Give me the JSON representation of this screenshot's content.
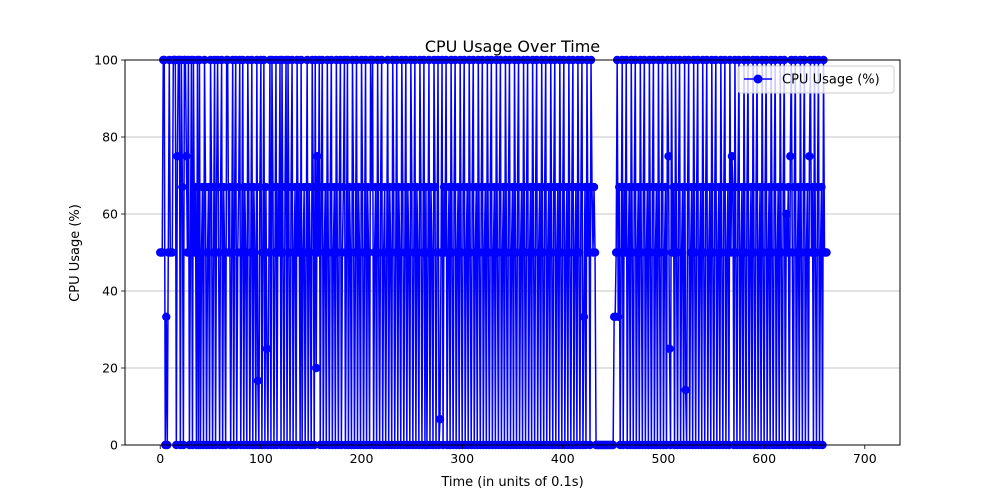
{
  "chart_data": {
    "type": "line",
    "title": "CPU Usage Over Time",
    "xlabel": "Time (in units of 0.1s)",
    "ylabel": "CPU Usage (%)",
    "xlim": [
      -35,
      735
    ],
    "ylim": [
      0,
      100
    ],
    "x_ticks": [
      0,
      100,
      200,
      300,
      400,
      500,
      600,
      700
    ],
    "y_ticks": [
      0,
      20,
      40,
      60,
      80,
      100
    ],
    "x_tick_labels": [
      "0",
      "100",
      "200",
      "300",
      "400",
      "500",
      "600",
      "700"
    ],
    "y_tick_labels": [
      "0",
      "20",
      "40",
      "60",
      "80",
      "100"
    ],
    "grid": "y-axis",
    "legend_position": "top-right",
    "series": [
      {
        "name": "CPU Usage (%)",
        "color": "#0000ff",
        "marker": "circle",
        "x_start": 0,
        "x_step": 1,
        "y": [
          50,
          50,
          50,
          100,
          100,
          0,
          33.3,
          0,
          50,
          100,
          50,
          50,
          50,
          100,
          100,
          100,
          0,
          75,
          100,
          100,
          0,
          100,
          67,
          0,
          100,
          100,
          75,
          50,
          100,
          0,
          50,
          100,
          0,
          100,
          50,
          67,
          0,
          100,
          0,
          100,
          0,
          50,
          67,
          0,
          100,
          67,
          0,
          50,
          67,
          0,
          100,
          67,
          0,
          50,
          100,
          0,
          67,
          100,
          50,
          0,
          67,
          100,
          0,
          67,
          50,
          0,
          100,
          100,
          50,
          67,
          0,
          50,
          100,
          0,
          67,
          100,
          0,
          50,
          67,
          100,
          0,
          50,
          100,
          0,
          67,
          50,
          0,
          100,
          67,
          0,
          50,
          100,
          0,
          67,
          50,
          0,
          100,
          16.7,
          0,
          67,
          100,
          0,
          50,
          100,
          0,
          67,
          25,
          0,
          50,
          100,
          0,
          100,
          67,
          0,
          50,
          100,
          0,
          67,
          50,
          100,
          0,
          100,
          50,
          0,
          67,
          100,
          0,
          100,
          50,
          0,
          67,
          100,
          0,
          50,
          67,
          0,
          100,
          50,
          67,
          0,
          100,
          0,
          50,
          67,
          0,
          50,
          100,
          0,
          67,
          50,
          0,
          100,
          67,
          0,
          100,
          20,
          75,
          50,
          100,
          0,
          67,
          100,
          0,
          50,
          67,
          0,
          100,
          50,
          0,
          67,
          100,
          0,
          50,
          67,
          0,
          100,
          50,
          0,
          67,
          100,
          0,
          50,
          67,
          100,
          0,
          50,
          100,
          0,
          67,
          50,
          0,
          100,
          67,
          0,
          50,
          100,
          0,
          67,
          50,
          0,
          100,
          67,
          0,
          50,
          100,
          0,
          67,
          50,
          0,
          100,
          67,
          100,
          0,
          50,
          67,
          0,
          100,
          50,
          0,
          67,
          100,
          0,
          50,
          67,
          0,
          50,
          100,
          0,
          67,
          50,
          0,
          100,
          67,
          0,
          50,
          100,
          0,
          67,
          50,
          0,
          100,
          67,
          0,
          50,
          100,
          0,
          67,
          50,
          0,
          100,
          67,
          0,
          50,
          100,
          0,
          67,
          50,
          0,
          100,
          67,
          0,
          50,
          100,
          0,
          67,
          0,
          50,
          100,
          0,
          67,
          50,
          0,
          100,
          67,
          0,
          50,
          100,
          0,
          6.7,
          50,
          100,
          0,
          67,
          50,
          100,
          0,
          50,
          67,
          0,
          100,
          50,
          0,
          67,
          100,
          0,
          50,
          67,
          0,
          100,
          50,
          0,
          67,
          100,
          0,
          50,
          67,
          0,
          100,
          50,
          0,
          67,
          100,
          0,
          50,
          67,
          0,
          100,
          50,
          0,
          67,
          100,
          0,
          50,
          67,
          0,
          100,
          50,
          0,
          67,
          100,
          0,
          50,
          67,
          0,
          100,
          50,
          0,
          67,
          100,
          0,
          50,
          67,
          0,
          100,
          50,
          0,
          67,
          100,
          0,
          50,
          67,
          0,
          100,
          50,
          0,
          67,
          100,
          0,
          50,
          67,
          0,
          100,
          50,
          0,
          67,
          100,
          0,
          50,
          67,
          0,
          100,
          50,
          0,
          67,
          100,
          0,
          50,
          67,
          0,
          100,
          50,
          0,
          67,
          100,
          0,
          50,
          67,
          0,
          100,
          50,
          0,
          67,
          100,
          0,
          50,
          67,
          0,
          100,
          50,
          0,
          67,
          100,
          0,
          50,
          67,
          0,
          100,
          50,
          0,
          67,
          100,
          0,
          50,
          67,
          0,
          100,
          50,
          0,
          67,
          100,
          0,
          33.3,
          67,
          0,
          100,
          50,
          67,
          0,
          100,
          67,
          50,
          67,
          50,
          0,
          0,
          0,
          0,
          0,
          0,
          0,
          0,
          0,
          0,
          0,
          0,
          0,
          0,
          0,
          0,
          0,
          0,
          33.3,
          33.3,
          50,
          100,
          33.3,
          67,
          0,
          50,
          100,
          0,
          67,
          50,
          100,
          0,
          50,
          67,
          0,
          100,
          50,
          0,
          67,
          100,
          0,
          50,
          67,
          0,
          100,
          50,
          0,
          67,
          100,
          0,
          50,
          67,
          0,
          100,
          50,
          0,
          67,
          100,
          0,
          50,
          67,
          0,
          100,
          50,
          0,
          67,
          100,
          0,
          50,
          67,
          0,
          100,
          75,
          25,
          0,
          100,
          50,
          67,
          0,
          100,
          50,
          0,
          67,
          100,
          0,
          50,
          67,
          0,
          100,
          14.3,
          0,
          67,
          100,
          0,
          50,
          67,
          0,
          100,
          50,
          0,
          67,
          100,
          0,
          50,
          67,
          0,
          100,
          50,
          0,
          67,
          100,
          0,
          50,
          67,
          0,
          100,
          50,
          0,
          67,
          100,
          0,
          50,
          67,
          0,
          100,
          50,
          0,
          67,
          100,
          0,
          50,
          67,
          0,
          100,
          50,
          75,
          67,
          0,
          100,
          50,
          0,
          67,
          100,
          0,
          50,
          67,
          0,
          100,
          50,
          0,
          67,
          100,
          0,
          50,
          67,
          0,
          100,
          50,
          0,
          67,
          100,
          0,
          50,
          67,
          0,
          100,
          50,
          0,
          67,
          100,
          0,
          50,
          67,
          0,
          100,
          50,
          0,
          67,
          100,
          0,
          50,
          67,
          0,
          100,
          50,
          0,
          67,
          100,
          0,
          60,
          50,
          67,
          0,
          75,
          100,
          50,
          0,
          67,
          100,
          0,
          50,
          67,
          0,
          100,
          50,
          0,
          67,
          100,
          0,
          50,
          67,
          0,
          75,
          100,
          50,
          67,
          0,
          100,
          50,
          0,
          67,
          100,
          0,
          50,
          67,
          0,
          100,
          50,
          50,
          50
        ]
      }
    ]
  }
}
